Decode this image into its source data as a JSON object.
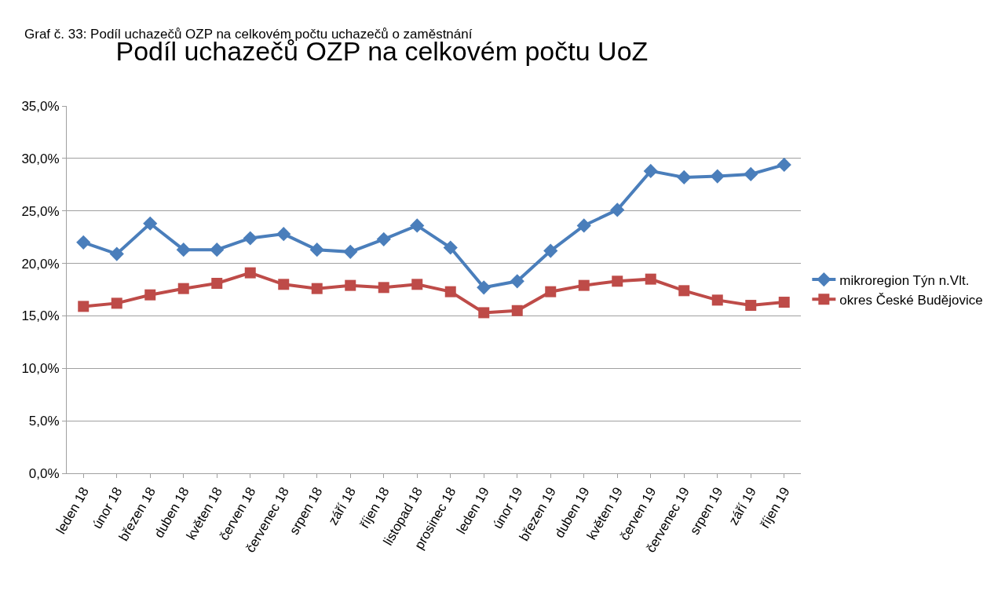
{
  "chart_data": {
    "type": "line",
    "title": "Podíl uchazečů OZP na celkovém počtu UoZ",
    "annotations": [
      "Graf č. 33: Podíl uchazečů OZP na celkovém počtu uchazečů o zaměstnání"
    ],
    "categories": [
      "leden 18",
      "únor 18",
      "březen 18",
      "duben 18",
      "květen 18",
      "červen 18",
      "červenec 18",
      "srpen 18",
      "září 18",
      "říjen 18",
      "listopad 18",
      "prosinec 18",
      "leden 19",
      "únor 19",
      "březen 19",
      "duben 19",
      "květen 19",
      "červen 19",
      "červenec 19",
      "srpen 19",
      "září 19",
      "říjen 19"
    ],
    "series": [
      {
        "name": "mikroregion Týn n.Vlt.",
        "color": "#4a7ebb",
        "marker": "diamond",
        "values": [
          22.0,
          20.9,
          23.8,
          21.3,
          21.3,
          22.4,
          22.8,
          21.3,
          21.1,
          22.3,
          23.6,
          21.5,
          17.7,
          18.3,
          21.2,
          23.6,
          25.1,
          28.8,
          28.2,
          28.3,
          28.5,
          29.4
        ]
      },
      {
        "name": "okres České Budějovice",
        "color": "#be4b48",
        "marker": "square",
        "values": [
          15.9,
          16.2,
          17.0,
          17.6,
          18.1,
          19.1,
          18.0,
          17.6,
          17.9,
          17.7,
          18.0,
          17.3,
          15.3,
          15.5,
          17.3,
          17.9,
          18.3,
          18.5,
          17.4,
          16.5,
          16.0,
          16.3
        ]
      }
    ],
    "ylim": [
      0,
      35
    ],
    "yticks": [
      {
        "value": 0,
        "label": "0,0%"
      },
      {
        "value": 5,
        "label": "5,0%"
      },
      {
        "value": 10,
        "label": "10,0%"
      },
      {
        "value": 15,
        "label": "15,0%"
      },
      {
        "value": 20,
        "label": "20,0%"
      },
      {
        "value": 25,
        "label": "25,0%"
      },
      {
        "value": 30,
        "label": "30,0%"
      },
      {
        "value": 35,
        "label": "35,0%"
      }
    ],
    "grid": "y",
    "legend": "right",
    "line_style": "solid"
  }
}
